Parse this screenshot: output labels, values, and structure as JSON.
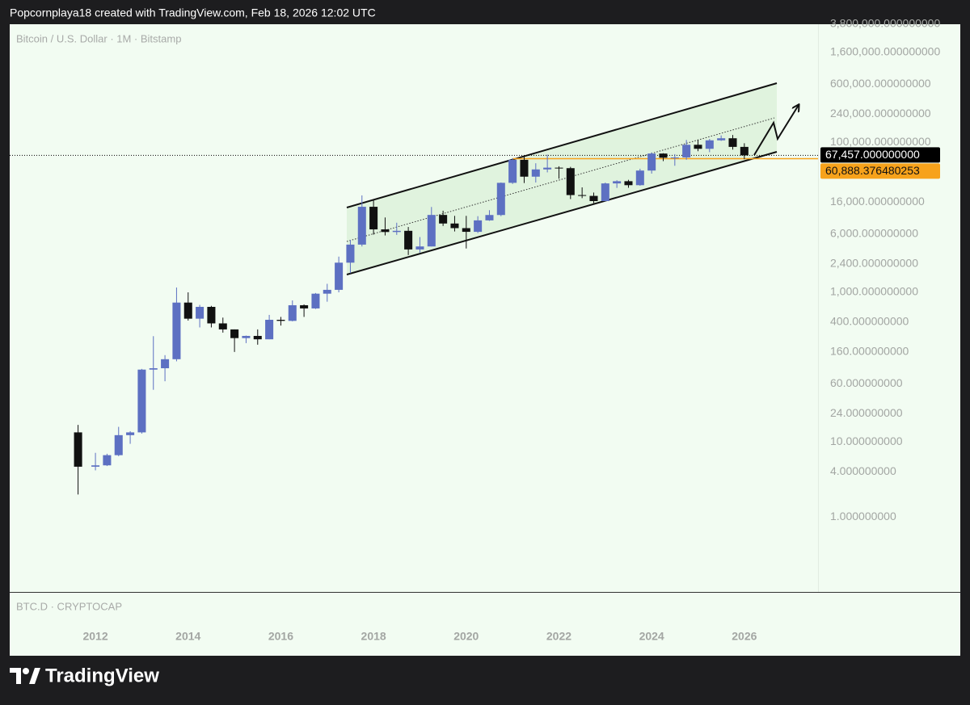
{
  "header": {
    "credit": "Popcornplaya18 created with TradingView.com, Feb 18, 2026 12:02 UTC"
  },
  "chart_data": {
    "type": "candlestick",
    "title": "Bitcoin / U.S. Dollar · 1M · Bitstamp",
    "log_scale": true,
    "up_color": "#5d70c2",
    "down_color": "#111111",
    "x": [
      2011.625,
      2012.0,
      2012.25,
      2012.5,
      2012.75,
      2013.0,
      2013.25,
      2013.5,
      2013.75,
      2014.0,
      2014.25,
      2014.5,
      2014.75,
      2015.0,
      2015.25,
      2015.5,
      2015.75,
      2016.0,
      2016.25,
      2016.5,
      2016.75,
      2017.0,
      2017.25,
      2017.5,
      2017.75,
      2018.0,
      2018.25,
      2018.5,
      2018.75,
      2019.0,
      2019.25,
      2019.5,
      2019.75,
      2020.0,
      2020.25,
      2020.5,
      2020.75,
      2021.0,
      2021.25,
      2021.5,
      2021.75,
      2022.0,
      2022.25,
      2022.5,
      2022.75,
      2023.0,
      2023.25,
      2023.5,
      2023.75,
      2024.0,
      2024.25,
      2024.5,
      2024.75,
      2025.0,
      2025.25,
      2025.5,
      2025.75,
      2026.0
    ],
    "open": [
      13.5,
      4.7,
      4.9,
      6.7,
      12.4,
      13.5,
      93,
      97,
      128,
      730,
      445,
      640,
      385,
      320,
      245,
      262,
      236,
      430,
      416,
      673,
      610,
      960,
      1080,
      2490,
      4340,
      13880,
      6930,
      6390,
      6630,
      3740,
      4100,
      10800,
      8300,
      7200,
      6430,
      9140,
      10780,
      28990,
      58800,
      35040,
      43790,
      46200,
      45500,
      19900,
      19400,
      16540,
      28470,
      30470,
      26970,
      42270,
      71300,
      62700,
      63300,
      93400,
      82500,
      107100,
      114100,
      87500
    ],
    "high": [
      17,
      7.2,
      7,
      16,
      14,
      95,
      260,
      145,
      1160,
      1000,
      680,
      660,
      460,
      320,
      265,
      320,
      500,
      470,
      780,
      690,
      980,
      1300,
      3000,
      5000,
      19700,
      17200,
      9990,
      8500,
      7460,
      5470,
      13800,
      12300,
      10500,
      10500,
      10400,
      12500,
      29300,
      61800,
      64900,
      52900,
      69000,
      48200,
      47400,
      25200,
      21500,
      29200,
      31400,
      31800,
      44700,
      73800,
      72000,
      70000,
      108300,
      109500,
      111900,
      124500,
      126200,
      97900
    ],
    "low": [
      2,
      4.2,
      4.8,
      6.5,
      9.5,
      13,
      50,
      65,
      120,
      420,
      340,
      340,
      290,
      160,
      210,
      200,
      236,
      360,
      410,
      470,
      600,
      750,
      1000,
      1800,
      4100,
      5900,
      5750,
      5850,
      3150,
      3400,
      4100,
      7700,
      6500,
      3850,
      6200,
      9000,
      10400,
      28000,
      28800,
      29300,
      40000,
      32900,
      17600,
      18100,
      15500,
      16500,
      24800,
      24900,
      26500,
      38500,
      56500,
      49000,
      58900,
      76600,
      74400,
      105200,
      80500,
      60000
    ],
    "close": [
      4.7,
      4.9,
      6.7,
      12.4,
      13.5,
      93,
      97,
      128,
      730,
      445,
      640,
      385,
      320,
      245,
      262,
      236,
      430,
      416,
      673,
      610,
      960,
      1080,
      2490,
      4340,
      13880,
      6930,
      6390,
      6630,
      3740,
      4100,
      10800,
      8300,
      7200,
      6430,
      9140,
      10780,
      28990,
      58800,
      35040,
      43790,
      46200,
      45500,
      19900,
      19400,
      16540,
      28470,
      30470,
      26970,
      42270,
      71300,
      62700,
      63300,
      93400,
      82500,
      107100,
      114100,
      87500,
      67457
    ],
    "xlim": [
      2010.15,
      2027.59
    ],
    "xticks": [
      2012,
      2014,
      2016,
      2018,
      2020,
      2022,
      2024,
      2026
    ],
    "ylim": [
      0.1,
      3800000
    ],
    "yticks": [
      {
        "value": 3800000,
        "label": "3,800,000.000000000"
      },
      {
        "value": 1600000,
        "label": "1,600,000.000000000"
      },
      {
        "value": 600000,
        "label": "600,000.000000000"
      },
      {
        "value": 240000,
        "label": "240,000.000000000"
      },
      {
        "value": 100000,
        "label": "100,000.000000000"
      },
      {
        "value": 16000,
        "label": "16,000.000000000"
      },
      {
        "value": 6000,
        "label": "6,000.000000000"
      },
      {
        "value": 2400,
        "label": "2,400.000000000"
      },
      {
        "value": 1000,
        "label": "1,000.000000000"
      },
      {
        "value": 400,
        "label": "400.000000000"
      },
      {
        "value": 160,
        "label": "160.000000000"
      },
      {
        "value": 60,
        "label": "60.000000000"
      },
      {
        "value": 24,
        "label": "24.000000000"
      },
      {
        "value": 10,
        "label": "10.000000000"
      },
      {
        "value": 4,
        "label": "4.000000000"
      },
      {
        "value": 1,
        "label": "1.000000000"
      }
    ],
    "last_price": {
      "value": 67457,
      "label": "67,457.000000000",
      "color": "#000000"
    },
    "level": {
      "value": 60888.376480253,
      "label": "60,888.376480253",
      "color": "#f7a21b"
    }
  },
  "indicator_pane": {
    "label": "BTC.D · CRYPTOCAP"
  },
  "footer": {
    "brand": "TradingView"
  }
}
